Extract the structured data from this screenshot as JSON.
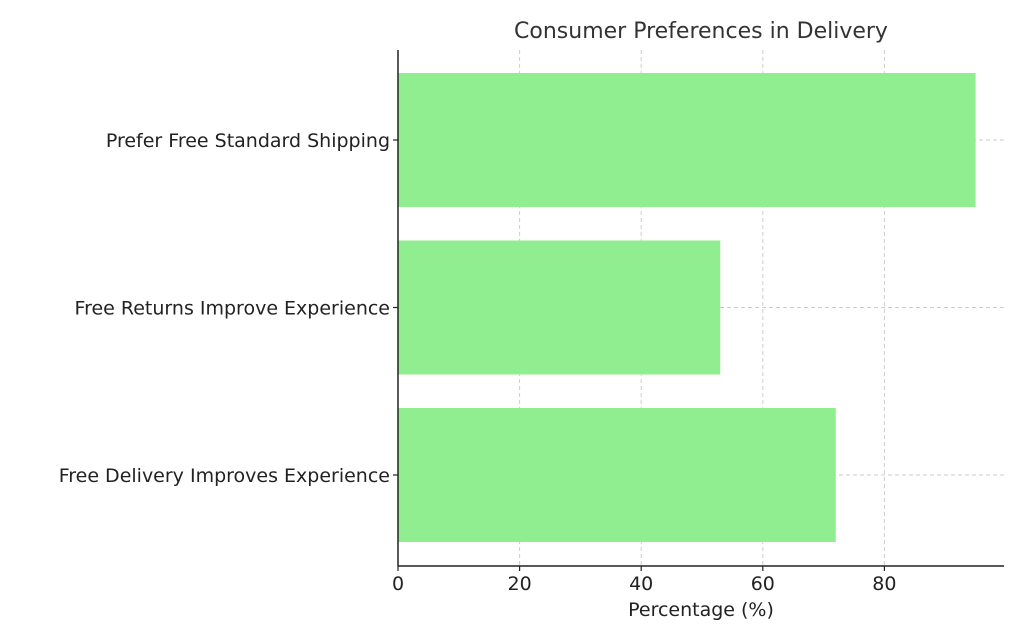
{
  "chart_data": {
    "type": "bar",
    "orientation": "horizontal",
    "title": "Consumer Preferences in Delivery",
    "xlabel": "Percentage (%)",
    "ylabel": "",
    "categories": [
      "Prefer Free Standard Shipping",
      "Free Returns Improve Experience",
      "Free Delivery Improves Experience"
    ],
    "values": [
      95,
      53,
      72
    ],
    "xlim": [
      0,
      100
    ],
    "xticks": [
      0,
      20,
      40,
      60,
      80
    ],
    "grid": true,
    "bar_color": "#90ee90"
  }
}
